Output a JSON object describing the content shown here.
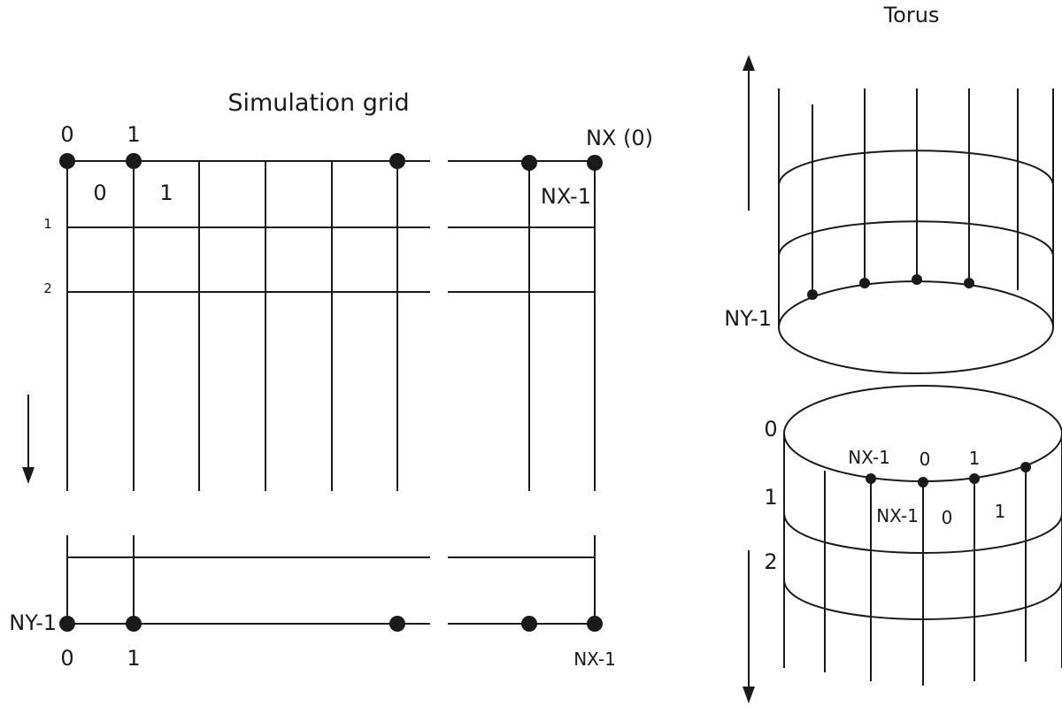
{
  "grid_panel": {
    "title": "Simulation grid",
    "top_col_index_0": "0",
    "top_col_index_1": "1",
    "top_col_index_nx": "NX (0)",
    "cell_index_0": "0",
    "cell_index_1": "1",
    "cell_index_nx1": "NX-1",
    "row_index_1": "1",
    "row_index_2": "2",
    "row_index_ny1": "NY-1",
    "bottom_col_index_0": "0",
    "bottom_col_index_1": "1",
    "bottom_col_index_nx1": "NX-1"
  },
  "torus_panel": {
    "title": "Torus",
    "upper_row_label": "NY-1",
    "lower_row_0": "0",
    "lower_row_1": "1",
    "lower_row_2": "2",
    "edge_point_nx1": "NX-1",
    "edge_point_0": "0",
    "edge_point_1": "1",
    "cell_nx1": "NX-1",
    "cell_0": "0",
    "cell_1": "1"
  }
}
